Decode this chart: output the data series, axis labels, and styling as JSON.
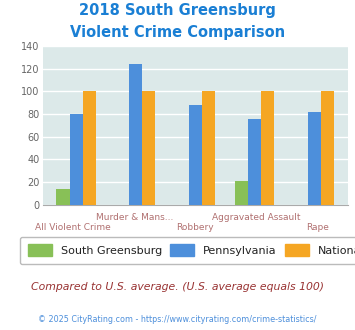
{
  "title_line1": "2018 South Greensburg",
  "title_line2": "Violent Crime Comparison",
  "south_greensburg": [
    14,
    0,
    0,
    21,
    0
  ],
  "pennsylvania": [
    80,
    124,
    88,
    76,
    82
  ],
  "national": [
    100,
    100,
    100,
    100,
    100
  ],
  "color_sg": "#88c057",
  "color_pa": "#4d8fdb",
  "color_nat": "#f5a623",
  "ylim": [
    0,
    140
  ],
  "yticks": [
    0,
    20,
    40,
    60,
    80,
    100,
    120,
    140
  ],
  "background_color": "#dce9e9",
  "grid_color": "#ffffff",
  "title_color": "#1a7fd4",
  "label_color": "#b07070",
  "legend_label_sg": "South Greensburg",
  "legend_label_pa": "Pennsylvania",
  "legend_label_nat": "National",
  "footer_text": "Compared to U.S. average. (U.S. average equals 100)",
  "credit_text": "© 2025 CityRating.com - https://www.cityrating.com/crime-statistics/",
  "footer_color": "#993333",
  "credit_color": "#4d8fdb"
}
